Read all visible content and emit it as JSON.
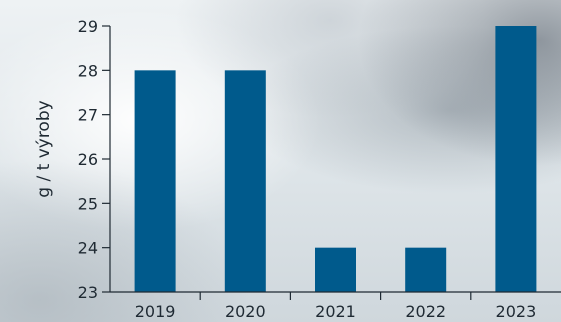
{
  "chart_data": {
    "type": "bar",
    "categories": [
      "2019",
      "2020",
      "2021",
      "2022",
      "2023"
    ],
    "values": [
      28,
      28,
      24,
      24,
      29
    ],
    "ylabel": "g / t výroby",
    "xlabel": "",
    "ylim": [
      23,
      29
    ],
    "yticks": [
      "23",
      "24",
      "25",
      "26",
      "27",
      "28",
      "29"
    ],
    "bar_color": "#005a8c",
    "axis_color": "#1f2a33",
    "grid": false
  }
}
